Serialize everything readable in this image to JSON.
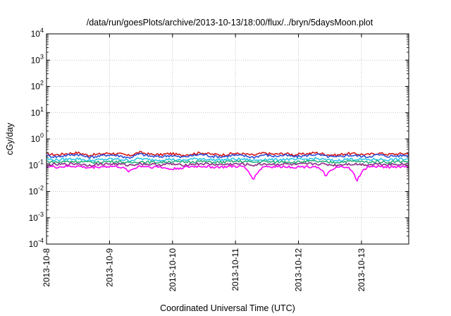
{
  "chart_data": {
    "type": "line",
    "title": "/data/run/goesPlots/archive/2013-10-13/18:00/flux/../bryn/5daysMoon.plot",
    "xlabel": "Coordinated Universal Time (UTC)",
    "ylabel": "cGy/day",
    "y_scale": "log",
    "ylim": [
      0.0001,
      10000
    ],
    "y_ticks": [
      {
        "exp": "4",
        "value": 10000
      },
      {
        "exp": "3",
        "value": 1000
      },
      {
        "exp": "2",
        "value": 100
      },
      {
        "exp": "1",
        "value": 10
      },
      {
        "exp": "0",
        "value": 1
      },
      {
        "exp": "-1",
        "value": 0.1
      },
      {
        "exp": "-2",
        "value": 0.01
      },
      {
        "exp": "-3",
        "value": 0.001
      },
      {
        "exp": "-4",
        "value": 0.0001
      }
    ],
    "y_tick_base": "10",
    "xlim": [
      "2013-10-08 00:00",
      "2013-10-13 18:00"
    ],
    "x_ticks": [
      "2013-10-8",
      "2013-10-9",
      "2013-10-10",
      "2013-10-11",
      "2013-10-12",
      "2013-10-13"
    ],
    "grid": true,
    "legend": "none",
    "series": [
      {
        "color": "#d61a1a",
        "base": 0.26,
        "values": [
          0.27,
          0.25,
          0.28,
          0.3,
          0.24,
          0.26,
          0.29,
          0.27,
          0.23,
          0.31,
          0.26,
          0.25,
          0.28,
          0.24,
          0.27,
          0.3,
          0.26,
          0.25,
          0.28,
          0.27,
          0.24,
          0.29,
          0.26,
          0.28,
          0.25,
          0.27,
          0.3,
          0.26,
          0.24,
          0.28,
          0.27,
          0.25,
          0.29,
          0.26,
          0.27,
          0.28
        ]
      },
      {
        "color": "#2a4fd8",
        "base": 0.22,
        "values": [
          0.23,
          0.21,
          0.24,
          0.26,
          0.2,
          0.22,
          0.25,
          0.23,
          0.19,
          0.27,
          0.22,
          0.21,
          0.24,
          0.2,
          0.23,
          0.26,
          0.22,
          0.21,
          0.24,
          0.23,
          0.2,
          0.25,
          0.22,
          0.24,
          0.21,
          0.23,
          0.26,
          0.22,
          0.2,
          0.24,
          0.23,
          0.21,
          0.25,
          0.22,
          0.23,
          0.24
        ]
      },
      {
        "color": "#2fc7e6",
        "base": 0.165,
        "values": [
          0.17,
          0.16,
          0.17,
          0.18,
          0.15,
          0.16,
          0.17,
          0.17,
          0.15,
          0.18,
          0.16,
          0.16,
          0.17,
          0.15,
          0.17,
          0.18,
          0.16,
          0.16,
          0.17,
          0.17,
          0.15,
          0.17,
          0.16,
          0.17,
          0.16,
          0.17,
          0.18,
          0.16,
          0.15,
          0.17,
          0.17,
          0.16,
          0.17,
          0.16,
          0.17,
          0.17
        ]
      },
      {
        "color": "#2bb07a",
        "base": 0.135,
        "values": [
          0.14,
          0.13,
          0.14,
          0.14,
          0.13,
          0.13,
          0.14,
          0.14,
          0.12,
          0.14,
          0.13,
          0.13,
          0.14,
          0.13,
          0.14,
          0.14,
          0.13,
          0.13,
          0.14,
          0.14,
          0.13,
          0.14,
          0.13,
          0.14,
          0.13,
          0.14,
          0.14,
          0.13,
          0.13,
          0.14,
          0.14,
          0.13,
          0.14,
          0.13,
          0.14,
          0.14
        ]
      },
      {
        "color": "#8b2b86",
        "base": 0.11,
        "values": [
          0.11,
          0.105,
          0.112,
          0.115,
          0.1,
          0.108,
          0.113,
          0.11,
          0.1,
          0.116,
          0.108,
          0.105,
          0.112,
          0.1,
          0.11,
          0.115,
          0.108,
          0.105,
          0.112,
          0.11,
          0.1,
          0.113,
          0.108,
          0.112,
          0.105,
          0.11,
          0.115,
          0.108,
          0.1,
          0.112,
          0.11,
          0.105,
          0.113,
          0.108,
          0.11,
          0.112
        ]
      },
      {
        "color": "#ff00ff",
        "base": 0.088,
        "values": [
          0.09,
          0.085,
          0.09,
          0.092,
          0.08,
          0.087,
          0.09,
          0.088,
          0.06,
          0.093,
          0.087,
          0.085,
          0.07,
          0.08,
          0.088,
          0.092,
          0.086,
          0.085,
          0.09,
          0.088,
          0.03,
          0.09,
          0.087,
          0.09,
          0.085,
          0.088,
          0.092,
          0.04,
          0.08,
          0.09,
          0.025,
          0.085,
          0.09,
          0.087,
          0.088,
          0.09
        ]
      }
    ]
  }
}
